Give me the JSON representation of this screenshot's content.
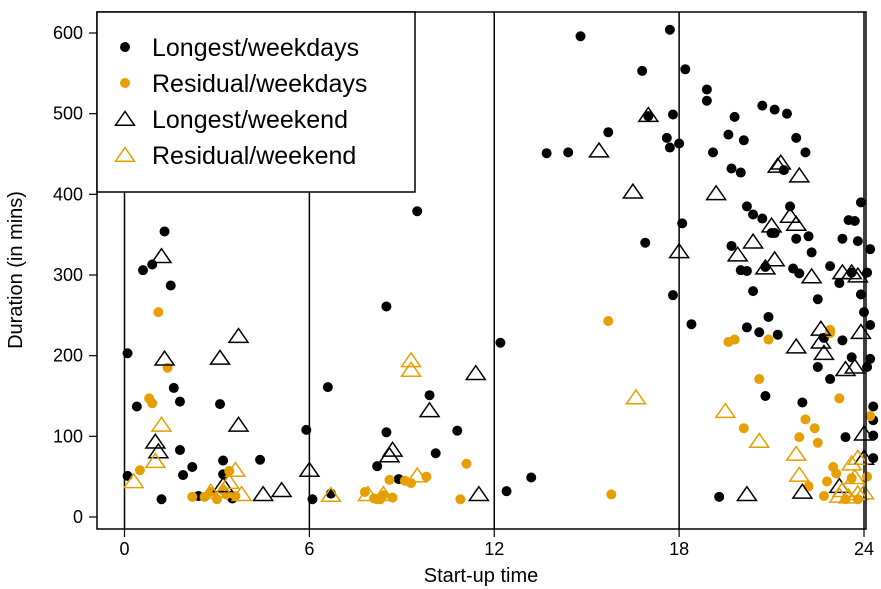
{
  "chart_data": {
    "type": "scatter",
    "title": "",
    "xlabel": "Start-up time",
    "ylabel": "Duration (in mins)",
    "xlim": [
      -0.7,
      24.3
    ],
    "ylim": [
      -20,
      640
    ],
    "xticks": [
      0,
      6,
      12,
      18,
      24
    ],
    "yticks": [
      0,
      100,
      200,
      300,
      400,
      500,
      600
    ],
    "vlines": [
      0,
      6,
      12,
      18,
      24
    ],
    "grid": false,
    "legend_position": "top-left",
    "colors": {
      "black": "#000000",
      "orange": "#E69F00"
    },
    "series": [
      {
        "name": "Longest/weekdays",
        "marker": "filled-circle",
        "color": "#000000",
        "points": [
          [
            0.1,
            203
          ],
          [
            0.1,
            51
          ],
          [
            0.4,
            137
          ],
          [
            0.6,
            306
          ],
          [
            0.9,
            313
          ],
          [
            1.2,
            22
          ],
          [
            1.3,
            354
          ],
          [
            1.5,
            287
          ],
          [
            1.6,
            160
          ],
          [
            1.8,
            143
          ],
          [
            1.8,
            83
          ],
          [
            1.9,
            52
          ],
          [
            2.2,
            62
          ],
          [
            2.4,
            26
          ],
          [
            3.1,
            140
          ],
          [
            3.2,
            70
          ],
          [
            3.2,
            53
          ],
          [
            3.5,
            23
          ],
          [
            4.4,
            71
          ],
          [
            5.9,
            108
          ],
          [
            6.1,
            22
          ],
          [
            6.6,
            161
          ],
          [
            6.7,
            29
          ],
          [
            8.2,
            63
          ],
          [
            8.5,
            261
          ],
          [
            8.5,
            105
          ],
          [
            8.9,
            47
          ],
          [
            9.5,
            379
          ],
          [
            9.9,
            151
          ],
          [
            10.1,
            79
          ],
          [
            10.8,
            107
          ],
          [
            12.2,
            216
          ],
          [
            12.4,
            32
          ],
          [
            13.2,
            49
          ],
          [
            13.7,
            451
          ],
          [
            14.4,
            452
          ],
          [
            14.8,
            596
          ],
          [
            15.7,
            477
          ],
          [
            16.8,
            553
          ],
          [
            16.9,
            340
          ],
          [
            17.0,
            497
          ],
          [
            17.6,
            470
          ],
          [
            17.7,
            604
          ],
          [
            17.7,
            458
          ],
          [
            17.8,
            499
          ],
          [
            17.8,
            275
          ],
          [
            18.0,
            463
          ],
          [
            18.1,
            364
          ],
          [
            18.2,
            555
          ],
          [
            18.4,
            239
          ],
          [
            18.9,
            530
          ],
          [
            18.9,
            516
          ],
          [
            19.1,
            452
          ],
          [
            19.3,
            25
          ],
          [
            19.6,
            474
          ],
          [
            19.7,
            432
          ],
          [
            19.7,
            336
          ],
          [
            19.8,
            496
          ],
          [
            20.0,
            306
          ],
          [
            20.0,
            427
          ],
          [
            20.1,
            467
          ],
          [
            20.2,
            385
          ],
          [
            20.2,
            305
          ],
          [
            20.2,
            235
          ],
          [
            20.4,
            375
          ],
          [
            20.4,
            280
          ],
          [
            20.6,
            229
          ],
          [
            20.7,
            510
          ],
          [
            20.7,
            370
          ],
          [
            20.8,
            310
          ],
          [
            20.8,
            150
          ],
          [
            20.9,
            248
          ],
          [
            21.0,
            352
          ],
          [
            21.1,
            505
          ],
          [
            21.1,
            352
          ],
          [
            21.2,
            226
          ],
          [
            21.4,
            430
          ],
          [
            21.5,
            500
          ],
          [
            21.6,
            385
          ],
          [
            21.7,
            308
          ],
          [
            21.8,
            470
          ],
          [
            21.8,
            345
          ],
          [
            21.9,
            302
          ],
          [
            22.0,
            142
          ],
          [
            22.1,
            452
          ],
          [
            22.2,
            348
          ],
          [
            22.3,
            328
          ],
          [
            22.5,
            270
          ],
          [
            22.5,
            186
          ],
          [
            22.7,
            222
          ],
          [
            22.9,
            311
          ],
          [
            22.9,
            171
          ],
          [
            23.2,
            290
          ],
          [
            23.3,
            345
          ],
          [
            23.3,
            219
          ],
          [
            23.4,
            99
          ],
          [
            23.5,
            368
          ],
          [
            23.6,
            303
          ],
          [
            23.6,
            198
          ],
          [
            23.7,
            367
          ],
          [
            23.8,
            342
          ],
          [
            23.9,
            276
          ],
          [
            23.9,
            390
          ],
          [
            24.0,
            254
          ],
          [
            24.1,
            303
          ],
          [
            24.1,
            186
          ],
          [
            24.2,
            332
          ],
          [
            24.2,
            238
          ],
          [
            24.2,
            196
          ],
          [
            24.3,
            137
          ],
          [
            24.3,
            101
          ],
          [
            24.3,
            73
          ],
          [
            24.3,
            120
          ]
        ]
      },
      {
        "name": "Residual/weekdays",
        "marker": "filled-circle",
        "color": "#E69F00",
        "points": [
          [
            0.5,
            58
          ],
          [
            0.8,
            147
          ],
          [
            0.9,
            141
          ],
          [
            1.1,
            254
          ],
          [
            1.4,
            185
          ],
          [
            2.2,
            25
          ],
          [
            2.6,
            25
          ],
          [
            2.8,
            31
          ],
          [
            3.0,
            22
          ],
          [
            3.2,
            33
          ],
          [
            3.3,
            28
          ],
          [
            3.4,
            57
          ],
          [
            3.6,
            26
          ],
          [
            7.8,
            31
          ],
          [
            8.1,
            23
          ],
          [
            8.2,
            22
          ],
          [
            8.3,
            22
          ],
          [
            8.4,
            27
          ],
          [
            8.6,
            46
          ],
          [
            8.7,
            24
          ],
          [
            9.1,
            45
          ],
          [
            9.3,
            42
          ],
          [
            9.8,
            50
          ],
          [
            10.9,
            22
          ],
          [
            11.1,
            66
          ],
          [
            15.7,
            243
          ],
          [
            15.8,
            28
          ],
          [
            19.6,
            217
          ],
          [
            19.8,
            220
          ],
          [
            20.1,
            110
          ],
          [
            20.6,
            171
          ],
          [
            20.9,
            220
          ],
          [
            21.9,
            99
          ],
          [
            22.1,
            121
          ],
          [
            22.2,
            38
          ],
          [
            22.4,
            110
          ],
          [
            22.5,
            92
          ],
          [
            22.7,
            26
          ],
          [
            22.8,
            44
          ],
          [
            22.9,
            228
          ],
          [
            22.9,
            232
          ],
          [
            23.0,
            62
          ],
          [
            23.1,
            54
          ],
          [
            23.2,
            147
          ],
          [
            23.4,
            22
          ],
          [
            23.6,
            48
          ],
          [
            23.8,
            22
          ],
          [
            24.1,
            50
          ],
          [
            24.2,
            125
          ]
        ]
      },
      {
        "name": "Longest/weekend",
        "marker": "open-triangle",
        "color": "#000000",
        "points": [
          [
            1.0,
            92
          ],
          [
            1.1,
            80
          ],
          [
            1.2,
            322
          ],
          [
            1.3,
            195
          ],
          [
            3.1,
            196
          ],
          [
            3.2,
            38
          ],
          [
            3.7,
            113
          ],
          [
            3.7,
            223
          ],
          [
            4.5,
            27
          ],
          [
            5.1,
            32
          ],
          [
            6.0,
            57
          ],
          [
            8.6,
            75
          ],
          [
            8.7,
            82
          ],
          [
            9.9,
            131
          ],
          [
            11.4,
            177
          ],
          [
            11.5,
            27
          ],
          [
            15.4,
            453
          ],
          [
            16.5,
            402
          ],
          [
            17.0,
            497
          ],
          [
            18.0,
            328
          ],
          [
            19.2,
            400
          ],
          [
            19.9,
            324
          ],
          [
            20.2,
            27
          ],
          [
            20.4,
            340
          ],
          [
            20.8,
            308
          ],
          [
            21.0,
            360
          ],
          [
            21.1,
            318
          ],
          [
            21.2,
            434
          ],
          [
            21.3,
            438
          ],
          [
            21.6,
            372
          ],
          [
            21.8,
            362
          ],
          [
            21.8,
            210
          ],
          [
            21.9,
            422
          ],
          [
            22.0,
            30
          ],
          [
            22.3,
            297
          ],
          [
            22.6,
            232
          ],
          [
            22.6,
            216
          ],
          [
            22.7,
            202
          ],
          [
            23.2,
            37
          ],
          [
            23.3,
            302
          ],
          [
            23.4,
            182
          ],
          [
            23.6,
            302
          ],
          [
            23.7,
            185
          ],
          [
            23.8,
            298
          ],
          [
            23.9,
            228
          ],
          [
            24.0,
            102
          ],
          [
            24.0,
            72
          ]
        ]
      },
      {
        "name": "Residual/weekend",
        "marker": "open-triangle",
        "color": "#E69F00",
        "points": [
          [
            0.3,
            43
          ],
          [
            1.0,
            68
          ],
          [
            1.2,
            113
          ],
          [
            2.8,
            30
          ],
          [
            3.2,
            31
          ],
          [
            3.4,
            42
          ],
          [
            3.6,
            57
          ],
          [
            3.8,
            27
          ],
          [
            6.7,
            26
          ],
          [
            7.9,
            27
          ],
          [
            8.4,
            27
          ],
          [
            9.3,
            193
          ],
          [
            9.3,
            181
          ],
          [
            9.5,
            50
          ],
          [
            16.6,
            147
          ],
          [
            19.5,
            130
          ],
          [
            20.6,
            93
          ],
          [
            21.8,
            77
          ],
          [
            21.9,
            51
          ],
          [
            23.2,
            25
          ],
          [
            23.3,
            32
          ],
          [
            23.5,
            24
          ],
          [
            23.6,
            65
          ],
          [
            23.7,
            48
          ],
          [
            23.8,
            28
          ],
          [
            23.8,
            72
          ],
          [
            24.0,
            29
          ]
        ]
      }
    ]
  }
}
